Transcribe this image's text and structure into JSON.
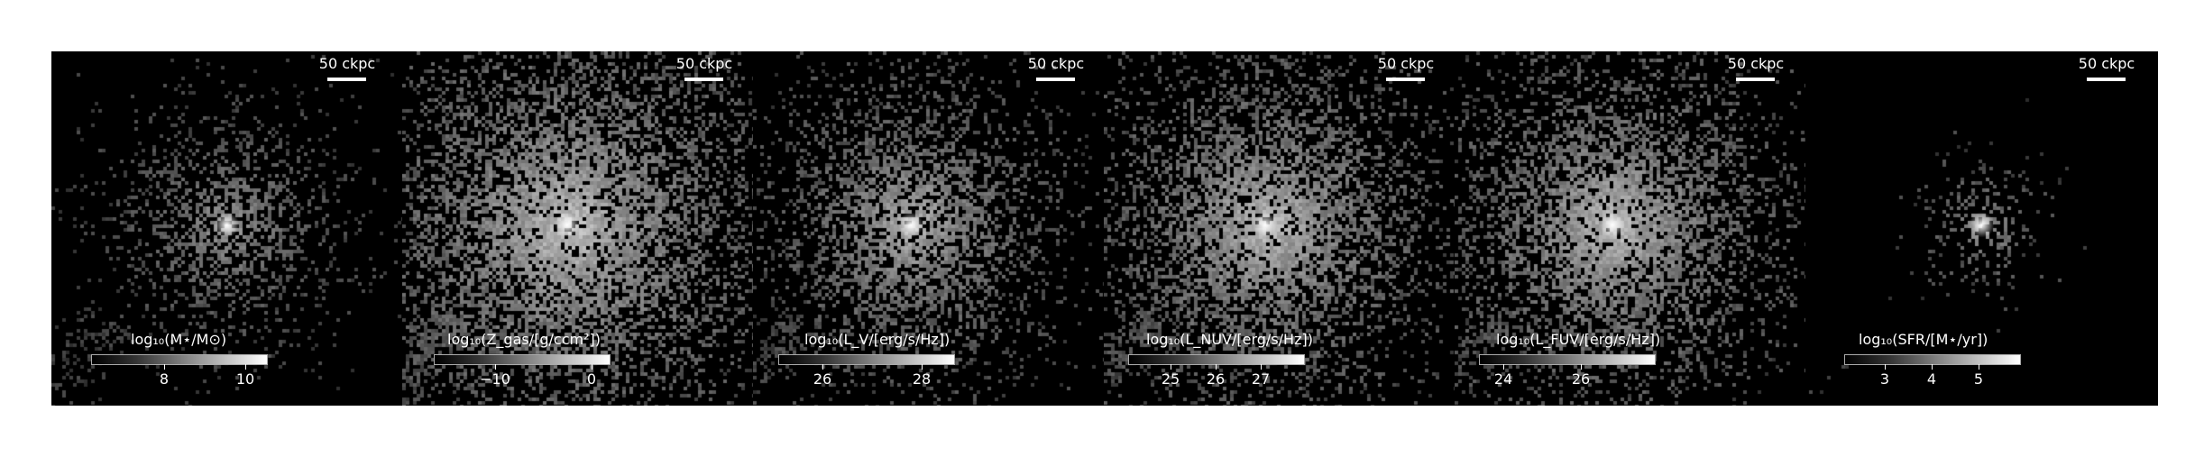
{
  "panels": [
    {
      "scalebar": "50 ckpc",
      "colorbar_label": "log₁₀(M⋆/M⊙)",
      "ticks": [
        {
          "label": "8",
          "frac": 0.42
        },
        {
          "label": "10",
          "frac": 0.88
        }
      ]
    },
    {
      "scalebar": "50 ckpc",
      "colorbar_label": "log₁₀(Z_gas/[g/ccm²])",
      "ticks": [
        {
          "label": "−10",
          "frac": 0.35
        },
        {
          "label": "0",
          "frac": 0.9
        }
      ]
    },
    {
      "scalebar": "50 ckpc",
      "colorbar_label": "log₁₀(L_V/[erg/s/Hz])",
      "ticks": [
        {
          "label": "26",
          "frac": 0.25
        },
        {
          "label": "28",
          "frac": 0.82
        }
      ]
    },
    {
      "scalebar": "50 ckpc",
      "colorbar_label": "log₁₀(L_NUV/[erg/s/Hz])",
      "ticks": [
        {
          "label": "25",
          "frac": 0.24
        },
        {
          "label": "26",
          "frac": 0.5
        },
        {
          "label": "27",
          "frac": 0.76
        }
      ]
    },
    {
      "scalebar": "50 ckpc",
      "colorbar_label": "log₁₀(L_FUV/[erg/s/Hz])",
      "ticks": [
        {
          "label": "24",
          "frac": 0.14
        },
        {
          "label": "26",
          "frac": 0.58
        }
      ]
    },
    {
      "scalebar": "50 ckpc",
      "colorbar_label": "log₁₀(SFR/[M⋆/yr])",
      "ticks": [
        {
          "label": "3",
          "frac": 0.23
        },
        {
          "label": "4",
          "frac": 0.5
        },
        {
          "label": "5",
          "frac": 0.77
        }
      ]
    }
  ]
}
